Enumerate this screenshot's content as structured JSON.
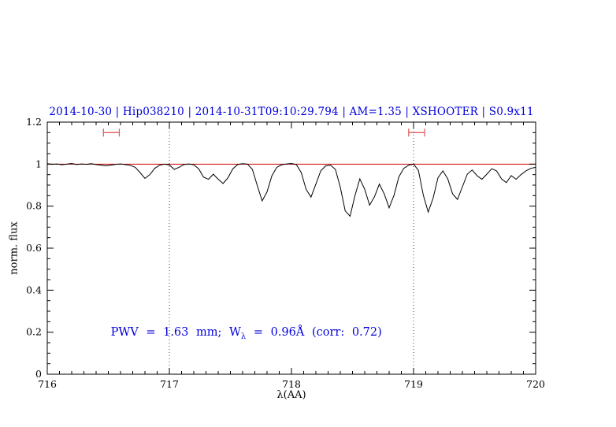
{
  "chart_data": {
    "type": "line",
    "title": "2014-10-30 | Hip038210 | 2014-10-31T09:10:29.794 | AM=1.35 | XSHOOTER | S0.9x11",
    "title_color": "#0000dd",
    "xlabel": "λ(AA)",
    "ylabel": "norm. flux",
    "xlim": [
      716,
      720
    ],
    "ylim": [
      0,
      1.2
    ],
    "grid": false,
    "x_ticks": {
      "values": [
        716,
        717,
        718,
        719,
        720
      ],
      "labels": [
        "716",
        "717",
        "718",
        "719",
        "720"
      ]
    },
    "y_ticks": {
      "values": [
        0,
        0.2,
        0.4,
        0.6,
        0.8,
        1,
        1.2
      ],
      "labels": [
        "0",
        "0.2",
        "0.4",
        "0.6",
        "0.8",
        "1",
        "1.2"
      ]
    },
    "x_minor_step": 0.1,
    "y_minor_step": 0.05,
    "vlines": {
      "style": "dotted",
      "color": "#444444",
      "x": [
        717,
        719
      ]
    },
    "series": [
      {
        "name": "spectrum",
        "color": "#000000",
        "points": [
          [
            716.0,
            1.002
          ],
          [
            716.04,
            0.999
          ],
          [
            716.08,
            1.001
          ],
          [
            716.12,
            0.997
          ],
          [
            716.16,
            1.0
          ],
          [
            716.2,
            1.003
          ],
          [
            716.24,
            0.998
          ],
          [
            716.28,
            1.001
          ],
          [
            716.32,
            0.999
          ],
          [
            716.36,
            1.002
          ],
          [
            716.4,
            0.998
          ],
          [
            716.44,
            0.995
          ],
          [
            716.48,
            0.992
          ],
          [
            716.52,
            0.995
          ],
          [
            716.56,
            0.999
          ],
          [
            716.6,
            1.001
          ],
          [
            716.64,
            0.998
          ],
          [
            716.68,
            0.994
          ],
          [
            716.72,
            0.985
          ],
          [
            716.76,
            0.96
          ],
          [
            716.8,
            0.932
          ],
          [
            716.84,
            0.95
          ],
          [
            716.88,
            0.98
          ],
          [
            716.92,
            0.995
          ],
          [
            716.96,
            1.0
          ],
          [
            717.0,
            0.996
          ],
          [
            717.04,
            0.975
          ],
          [
            717.08,
            0.985
          ],
          [
            717.12,
            0.998
          ],
          [
            717.16,
            1.001
          ],
          [
            717.2,
            0.997
          ],
          [
            717.24,
            0.978
          ],
          [
            717.28,
            0.938
          ],
          [
            717.32,
            0.928
          ],
          [
            717.36,
            0.952
          ],
          [
            717.4,
            0.928
          ],
          [
            717.44,
            0.908
          ],
          [
            717.48,
            0.935
          ],
          [
            717.52,
            0.978
          ],
          [
            717.56,
            0.998
          ],
          [
            717.6,
            1.002
          ],
          [
            717.64,
            1.0
          ],
          [
            717.68,
            0.975
          ],
          [
            717.72,
            0.898
          ],
          [
            717.76,
            0.825
          ],
          [
            717.8,
            0.868
          ],
          [
            717.84,
            0.945
          ],
          [
            717.88,
            0.985
          ],
          [
            717.92,
            0.997
          ],
          [
            717.96,
            1.001
          ],
          [
            718.0,
            1.003
          ],
          [
            718.04,
            0.998
          ],
          [
            718.08,
            0.96
          ],
          [
            718.12,
            0.88
          ],
          [
            718.16,
            0.843
          ],
          [
            718.2,
            0.905
          ],
          [
            718.24,
            0.968
          ],
          [
            718.28,
            0.992
          ],
          [
            718.32,
            0.995
          ],
          [
            718.36,
            0.975
          ],
          [
            718.4,
            0.89
          ],
          [
            718.44,
            0.778
          ],
          [
            718.48,
            0.752
          ],
          [
            718.52,
            0.85
          ],
          [
            718.56,
            0.93
          ],
          [
            718.6,
            0.88
          ],
          [
            718.64,
            0.805
          ],
          [
            718.68,
            0.845
          ],
          [
            718.72,
            0.905
          ],
          [
            718.76,
            0.858
          ],
          [
            718.8,
            0.792
          ],
          [
            718.84,
            0.852
          ],
          [
            718.88,
            0.94
          ],
          [
            718.92,
            0.98
          ],
          [
            718.96,
            0.995
          ],
          [
            719.0,
            1.0
          ],
          [
            719.04,
            0.97
          ],
          [
            719.08,
            0.852
          ],
          [
            719.12,
            0.772
          ],
          [
            719.16,
            0.838
          ],
          [
            719.2,
            0.935
          ],
          [
            719.24,
            0.968
          ],
          [
            719.28,
            0.93
          ],
          [
            719.32,
            0.858
          ],
          [
            719.36,
            0.832
          ],
          [
            719.4,
            0.892
          ],
          [
            719.44,
            0.952
          ],
          [
            719.48,
            0.972
          ],
          [
            719.52,
            0.945
          ],
          [
            719.56,
            0.928
          ],
          [
            719.6,
            0.952
          ],
          [
            719.64,
            0.978
          ],
          [
            719.68,
            0.968
          ],
          [
            719.72,
            0.93
          ],
          [
            719.76,
            0.912
          ],
          [
            719.8,
            0.945
          ],
          [
            719.84,
            0.928
          ],
          [
            719.88,
            0.95
          ],
          [
            719.92,
            0.968
          ],
          [
            719.96,
            0.98
          ],
          [
            720.0,
            0.985
          ]
        ]
      },
      {
        "name": "continuum-fit",
        "color": "#cc0000",
        "points": [
          [
            716.0,
            1.0
          ],
          [
            720.0,
            1.0
          ]
        ]
      }
    ],
    "interval_markers": {
      "color": "#e06060",
      "y": 1.15,
      "ranges": [
        [
          716.46,
          716.59
        ],
        [
          718.96,
          719.09
        ]
      ]
    },
    "annotation": {
      "color": "#0000dd",
      "x": 716.52,
      "y": 0.195,
      "part1": "PWV = 1.63 mm; W",
      "sub": "λ",
      "part2": " = 0.96Å (corr: 0.72)"
    }
  }
}
